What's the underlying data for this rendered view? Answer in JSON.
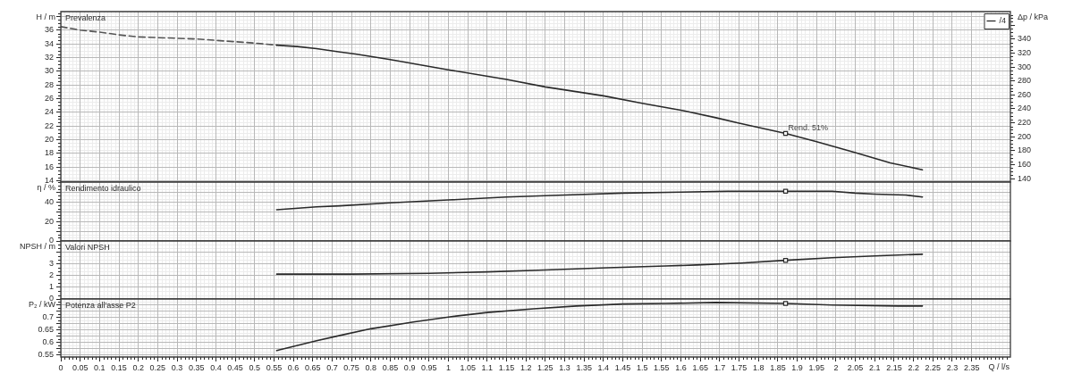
{
  "chart_data": [
    {
      "type": "line",
      "title": "Prevalenza",
      "ylabel": "H / m",
      "y2label": "Δp / kPa",
      "xlim": [
        0,
        2.45
      ],
      "xticks": [
        0,
        0.05,
        0.1,
        0.15,
        0.2,
        0.25,
        0.3,
        0.35,
        0.4,
        0.45,
        0.5,
        0.55,
        0.6,
        0.65,
        0.7,
        0.75,
        0.8,
        0.85,
        0.9,
        0.95,
        1,
        1.05,
        1.1,
        1.15,
        1.2,
        1.25,
        1.3,
        1.35,
        1.4,
        1.45,
        1.5,
        1.55,
        1.6,
        1.65,
        1.7,
        1.75,
        1.8,
        1.85,
        1.9,
        1.95,
        2,
        2.05,
        2.1,
        2.15,
        2.2,
        2.25,
        2.3,
        2.35
      ],
      "ylim": [
        13.8,
        38.7
      ],
      "yticks": [
        14,
        16,
        18,
        20,
        22,
        24,
        26,
        28,
        30,
        32,
        34,
        36,
        {
          "value": 38,
          "label": null
        }
      ],
      "y2lim": [
        135,
        379.5
      ],
      "y2ticks": [
        140,
        160,
        180,
        200,
        220,
        240,
        260,
        280,
        300,
        320,
        340,
        {
          "value": 360,
          "label": null
        }
      ],
      "grid": true,
      "legend": "top right",
      "tick_labels": "y",
      "series": [
        {
          "name": "/4",
          "color": "#2a2a2a",
          "x": [
            0.557,
            0.61,
            0.66,
            0.72,
            0.76,
            0.85,
            1.0,
            1.15,
            1.25,
            1.4,
            1.5,
            1.6,
            1.69,
            1.75,
            1.87,
            1.95,
            2.05,
            2.14,
            2.223
          ],
          "values": [
            33.8,
            33.6,
            33.3,
            32.8,
            32.5,
            31.7,
            30.2,
            28.8,
            27.7,
            26.4,
            25.3,
            24.3,
            23.2,
            22.4,
            20.9,
            19.7,
            18.1,
            16.6,
            15.6
          ]
        },
        {
          "color": "#555555",
          "line_style": "dashed",
          "x": [
            0,
            0.05,
            0.1,
            0.15,
            0.2,
            0.25,
            0.3,
            0.35,
            0.4,
            0.45,
            0.5,
            0.557
          ],
          "values": [
            36.5,
            36.0,
            35.7,
            35.3,
            35.0,
            34.9,
            34.8,
            34.7,
            34.5,
            34.3,
            34.1,
            33.8
          ]
        },
        {
          "type": "scatter",
          "marker": "square",
          "color": "#2a2a2a",
          "x": [
            1.87
          ],
          "values": [
            20.9
          ]
        }
      ],
      "annotations": [
        {
          "text": "Rend. 51%",
          "x": 1.87,
          "y": 20.9
        }
      ]
    },
    {
      "type": "line",
      "title": "Rendimento idraulico",
      "ylabel": "η / %",
      "xlim": [
        0,
        2.45
      ],
      "xticks": [
        0,
        0.05,
        0.1,
        0.15,
        0.2,
        0.25,
        0.3,
        0.35,
        0.4,
        0.45,
        0.5,
        0.55,
        0.6,
        0.65,
        0.7,
        0.75,
        0.8,
        0.85,
        0.9,
        0.95,
        1,
        1.05,
        1.1,
        1.15,
        1.2,
        1.25,
        1.3,
        1.35,
        1.4,
        1.45,
        1.5,
        1.55,
        1.6,
        1.65,
        1.7,
        1.75,
        1.8,
        1.85,
        1.9,
        1.95,
        2,
        2.05,
        2.1,
        2.15,
        2.2,
        2.25,
        2.3,
        2.35
      ],
      "ylim": [
        0,
        60.3
      ],
      "yticks": [
        0,
        {
          "value": 10,
          "label": null
        },
        20,
        {
          "value": 30,
          "label": null
        },
        40,
        {
          "value": 50,
          "label": null
        }
      ],
      "grid": true,
      "tick_labels": "y",
      "series": [
        {
          "color": "#2a2a2a",
          "x": [
            0.557,
            0.66,
            0.72,
            0.85,
            1.0,
            1.15,
            1.3,
            1.45,
            1.6,
            1.72,
            1.87,
            1.99,
            2.05,
            2.1,
            2.18,
            2.223
          ],
          "values": [
            32,
            35,
            36,
            39,
            42,
            45,
            47,
            49,
            50,
            51,
            51,
            51,
            49,
            48,
            47,
            45
          ]
        },
        {
          "type": "scatter",
          "marker": "square",
          "color": "#2a2a2a",
          "x": [
            1.87
          ],
          "values": [
            51
          ]
        }
      ]
    },
    {
      "type": "line",
      "title": "Valori NPSH",
      "ylabel": "NPSH / m",
      "xlim": [
        0,
        2.45
      ],
      "xticks": [
        0,
        0.05,
        0.1,
        0.15,
        0.2,
        0.25,
        0.3,
        0.35,
        0.4,
        0.45,
        0.5,
        0.55,
        0.6,
        0.65,
        0.7,
        0.75,
        0.8,
        0.85,
        0.9,
        0.95,
        1,
        1.05,
        1.1,
        1.15,
        1.2,
        1.25,
        1.3,
        1.35,
        1.4,
        1.45,
        1.5,
        1.55,
        1.6,
        1.65,
        1.7,
        1.75,
        1.8,
        1.85,
        1.9,
        1.95,
        2,
        2.05,
        2.1,
        2.15,
        2.2,
        2.25,
        2.3,
        2.35
      ],
      "ylim": [
        0,
        4.95
      ],
      "yticks": [
        0,
        1,
        2,
        3,
        {
          "value": 4,
          "label": null
        }
      ],
      "grid": true,
      "tick_labels": "y",
      "series": [
        {
          "color": "#2a2a2a",
          "x": [
            0.557,
            0.75,
            0.95,
            1.1,
            1.25,
            1.41,
            1.56,
            1.64,
            1.755,
            1.87,
            1.99,
            2.1,
            2.223
          ],
          "values": [
            2.12,
            2.12,
            2.19,
            2.31,
            2.47,
            2.66,
            2.82,
            2.9,
            3.07,
            3.3,
            3.52,
            3.68,
            3.82
          ]
        },
        {
          "type": "scatter",
          "marker": "square",
          "color": "#2a2a2a",
          "x": [
            1.87
          ],
          "values": [
            3.3
          ]
        }
      ]
    },
    {
      "type": "line",
      "title": "Potenza all'asse P2",
      "ylabel": "P₂ / kW",
      "xlabel": "Q / l/s",
      "xlim": [
        0,
        2.45
      ],
      "xticks": [
        0,
        0.05,
        0.1,
        0.15,
        0.2,
        0.25,
        0.3,
        0.35,
        0.4,
        0.45,
        0.5,
        0.55,
        0.6,
        0.65,
        0.7,
        0.75,
        0.8,
        0.85,
        0.9,
        0.95,
        1,
        1.05,
        1.1,
        1.15,
        1.2,
        1.25,
        1.3,
        1.35,
        1.4,
        1.45,
        1.5,
        1.55,
        1.6,
        1.65,
        1.7,
        1.75,
        1.8,
        1.85,
        1.9,
        1.95,
        2,
        2.05,
        2.1,
        2.15,
        2.2,
        2.25,
        2.3,
        2.35
      ],
      "ylim": [
        0.542,
        0.774
      ],
      "yticks": [
        0.55,
        {
          "value": 0.575,
          "label": null
        },
        0.6,
        {
          "value": 0.625,
          "label": null
        },
        0.65,
        {
          "value": 0.675,
          "label": null
        },
        0.7,
        {
          "value": 0.725,
          "label": null
        },
        {
          "value": 0.75,
          "label": null
        }
      ],
      "grid": true,
      "series": [
        {
          "color": "#2a2a2a",
          "x": [
            0.557,
            0.66,
            0.72,
            0.8,
            0.91,
            1.0,
            1.1,
            1.22,
            1.33,
            1.45,
            1.56,
            1.69,
            1.87,
            1.99,
            2.16,
            2.223
          ],
          "values": [
            0.568,
            0.607,
            0.628,
            0.655,
            0.682,
            0.702,
            0.72,
            0.735,
            0.746,
            0.754,
            0.756,
            0.76,
            0.756,
            0.75,
            0.746,
            0.746
          ]
        },
        {
          "type": "scatter",
          "marker": "square",
          "color": "#2a2a2a",
          "x": [
            1.87
          ],
          "values": [
            0.756
          ]
        }
      ]
    }
  ]
}
